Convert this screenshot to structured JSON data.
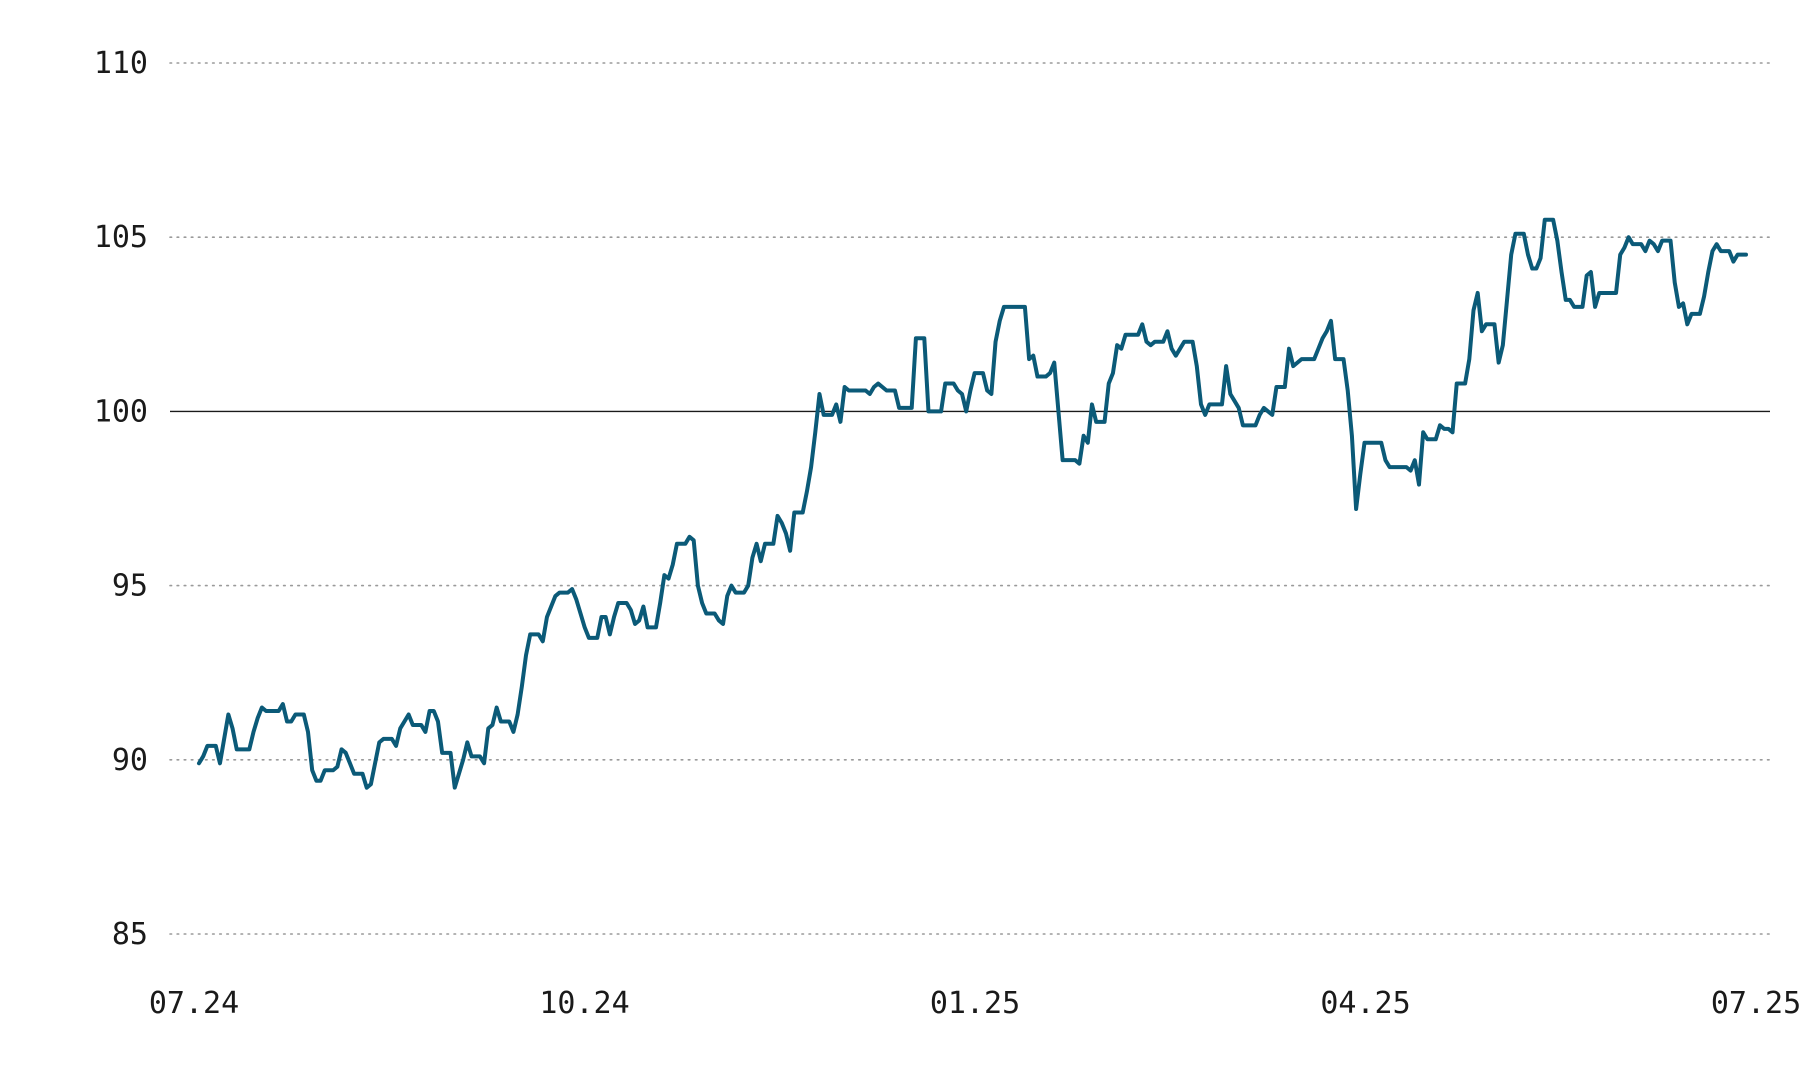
{
  "chart_data": {
    "type": "line",
    "title": "",
    "xlabel": "",
    "ylabel": "",
    "x_ticks": [
      "07.24",
      "10.24",
      "01.25",
      "04.25",
      "07.25"
    ],
    "y_ticks": [
      85,
      90,
      95,
      100,
      105,
      110
    ],
    "ylim": [
      85,
      110
    ],
    "baseline": 100,
    "grid": "horizontal-dotted",
    "line_color": "#0b5a78",
    "baseline_color": "#1a1a1a",
    "grid_color": "#9a9a9a",
    "series": [
      {
        "values": [
          89.9,
          90.1,
          90.4,
          90.4,
          90.4,
          89.9,
          90.6,
          91.3,
          90.9,
          90.3,
          90.3,
          90.3,
          90.3,
          90.8,
          91.2,
          91.5,
          91.4,
          91.4,
          91.4,
          91.4,
          91.6,
          91.1,
          91.1,
          91.3,
          91.3,
          91.3,
          90.8,
          89.7,
          89.4,
          89.4,
          89.7,
          89.7,
          89.7,
          89.8,
          90.3,
          90.2,
          89.9,
          89.6,
          89.6,
          89.6,
          89.2,
          89.3,
          89.9,
          90.5,
          90.6,
          90.6,
          90.6,
          90.4,
          90.9,
          91.1,
          91.3,
          91.0,
          91.0,
          91.0,
          90.8,
          91.4,
          91.4,
          91.1,
          90.2,
          90.2,
          90.2,
          89.2,
          89.6,
          90.0,
          90.5,
          90.1,
          90.1,
          90.1,
          89.9,
          90.9,
          91.0,
          91.5,
          91.1,
          91.1,
          91.1,
          90.8,
          91.3,
          92.1,
          93.0,
          93.6,
          93.6,
          93.6,
          93.4,
          94.1,
          94.4,
          94.7,
          94.8,
          94.8,
          94.8,
          94.9,
          94.6,
          94.2,
          93.8,
          93.5,
          93.5,
          93.5,
          94.1,
          94.1,
          93.6,
          94.1,
          94.5,
          94.5,
          94.5,
          94.3,
          93.9,
          94.0,
          94.4,
          93.8,
          93.8,
          93.8,
          94.5,
          95.3,
          95.2,
          95.6,
          96.2,
          96.2,
          96.2,
          96.4,
          96.3,
          95.0,
          94.5,
          94.2,
          94.2,
          94.2,
          94.0,
          93.9,
          94.7,
          95.0,
          94.8,
          94.8,
          94.8,
          95.0,
          95.8,
          96.2,
          95.7,
          96.2,
          96.2,
          96.2,
          97.0,
          96.8,
          96.5,
          96.0,
          97.1,
          97.1,
          97.1,
          97.7,
          98.4,
          99.4,
          100.5,
          99.9,
          99.9,
          99.9,
          100.2,
          99.7,
          100.7,
          100.6,
          100.6,
          100.6,
          100.6,
          100.6,
          100.5,
          100.7,
          100.8,
          100.7,
          100.6,
          100.6,
          100.6,
          100.1,
          100.1,
          100.1,
          100.1,
          102.1,
          102.1,
          102.1,
          100.0,
          100.0,
          100.0,
          100.0,
          100.8,
          100.8,
          100.8,
          100.6,
          100.5,
          100.0,
          100.6,
          101.1,
          101.1,
          101.1,
          100.6,
          100.5,
          102.0,
          102.6,
          103.0,
          103.0,
          103.0,
          103.0,
          103.0,
          103.0,
          101.5,
          101.6,
          101.0,
          101.0,
          101.0,
          101.1,
          101.4,
          100.0,
          98.6,
          98.6,
          98.6,
          98.6,
          98.5,
          99.3,
          99.1,
          100.2,
          99.7,
          99.7,
          99.7,
          100.8,
          101.1,
          101.9,
          101.8,
          102.2,
          102.2,
          102.2,
          102.2,
          102.5,
          102.0,
          101.9,
          102.0,
          102.0,
          102.0,
          102.3,
          101.8,
          101.6,
          101.8,
          102.0,
          102.0,
          102.0,
          101.3,
          100.2,
          99.9,
          100.2,
          100.2,
          100.2,
          100.2,
          101.3,
          100.5,
          100.3,
          100.1,
          99.6,
          99.6,
          99.6,
          99.6,
          99.9,
          100.1,
          100.0,
          99.9,
          100.7,
          100.7,
          100.7,
          101.8,
          101.3,
          101.4,
          101.5,
          101.5,
          101.5,
          101.5,
          101.8,
          102.1,
          102.3,
          102.6,
          101.5,
          101.5,
          101.5,
          100.6,
          99.3,
          97.2,
          98.2,
          99.1,
          99.1,
          99.1,
          99.1,
          99.1,
          98.6,
          98.4,
          98.4,
          98.4,
          98.4,
          98.4,
          98.3,
          98.6,
          97.9,
          99.4,
          99.2,
          99.2,
          99.2,
          99.6,
          99.5,
          99.5,
          99.4,
          100.8,
          100.8,
          100.8,
          101.5,
          102.9,
          103.4,
          102.3,
          102.5,
          102.5,
          102.5,
          101.4,
          101.9,
          103.2,
          104.5,
          105.1,
          105.1,
          105.1,
          104.5,
          104.1,
          104.1,
          104.4,
          105.5,
          105.5,
          105.5,
          104.9,
          104.0,
          103.2,
          103.2,
          103.0,
          103.0,
          103.0,
          103.9,
          104.0,
          103.0,
          103.4,
          103.4,
          103.4,
          103.4,
          103.4,
          104.5,
          104.7,
          105.0,
          104.8,
          104.8,
          104.8,
          104.6,
          104.9,
          104.8,
          104.6,
          104.9,
          104.9,
          104.9,
          103.7,
          103.0,
          103.1,
          102.5,
          102.8,
          102.8,
          102.8,
          103.3,
          104.0,
          104.6,
          104.8,
          104.6,
          104.6,
          104.6,
          104.3,
          104.5,
          104.5,
          104.5
        ]
      }
    ]
  }
}
